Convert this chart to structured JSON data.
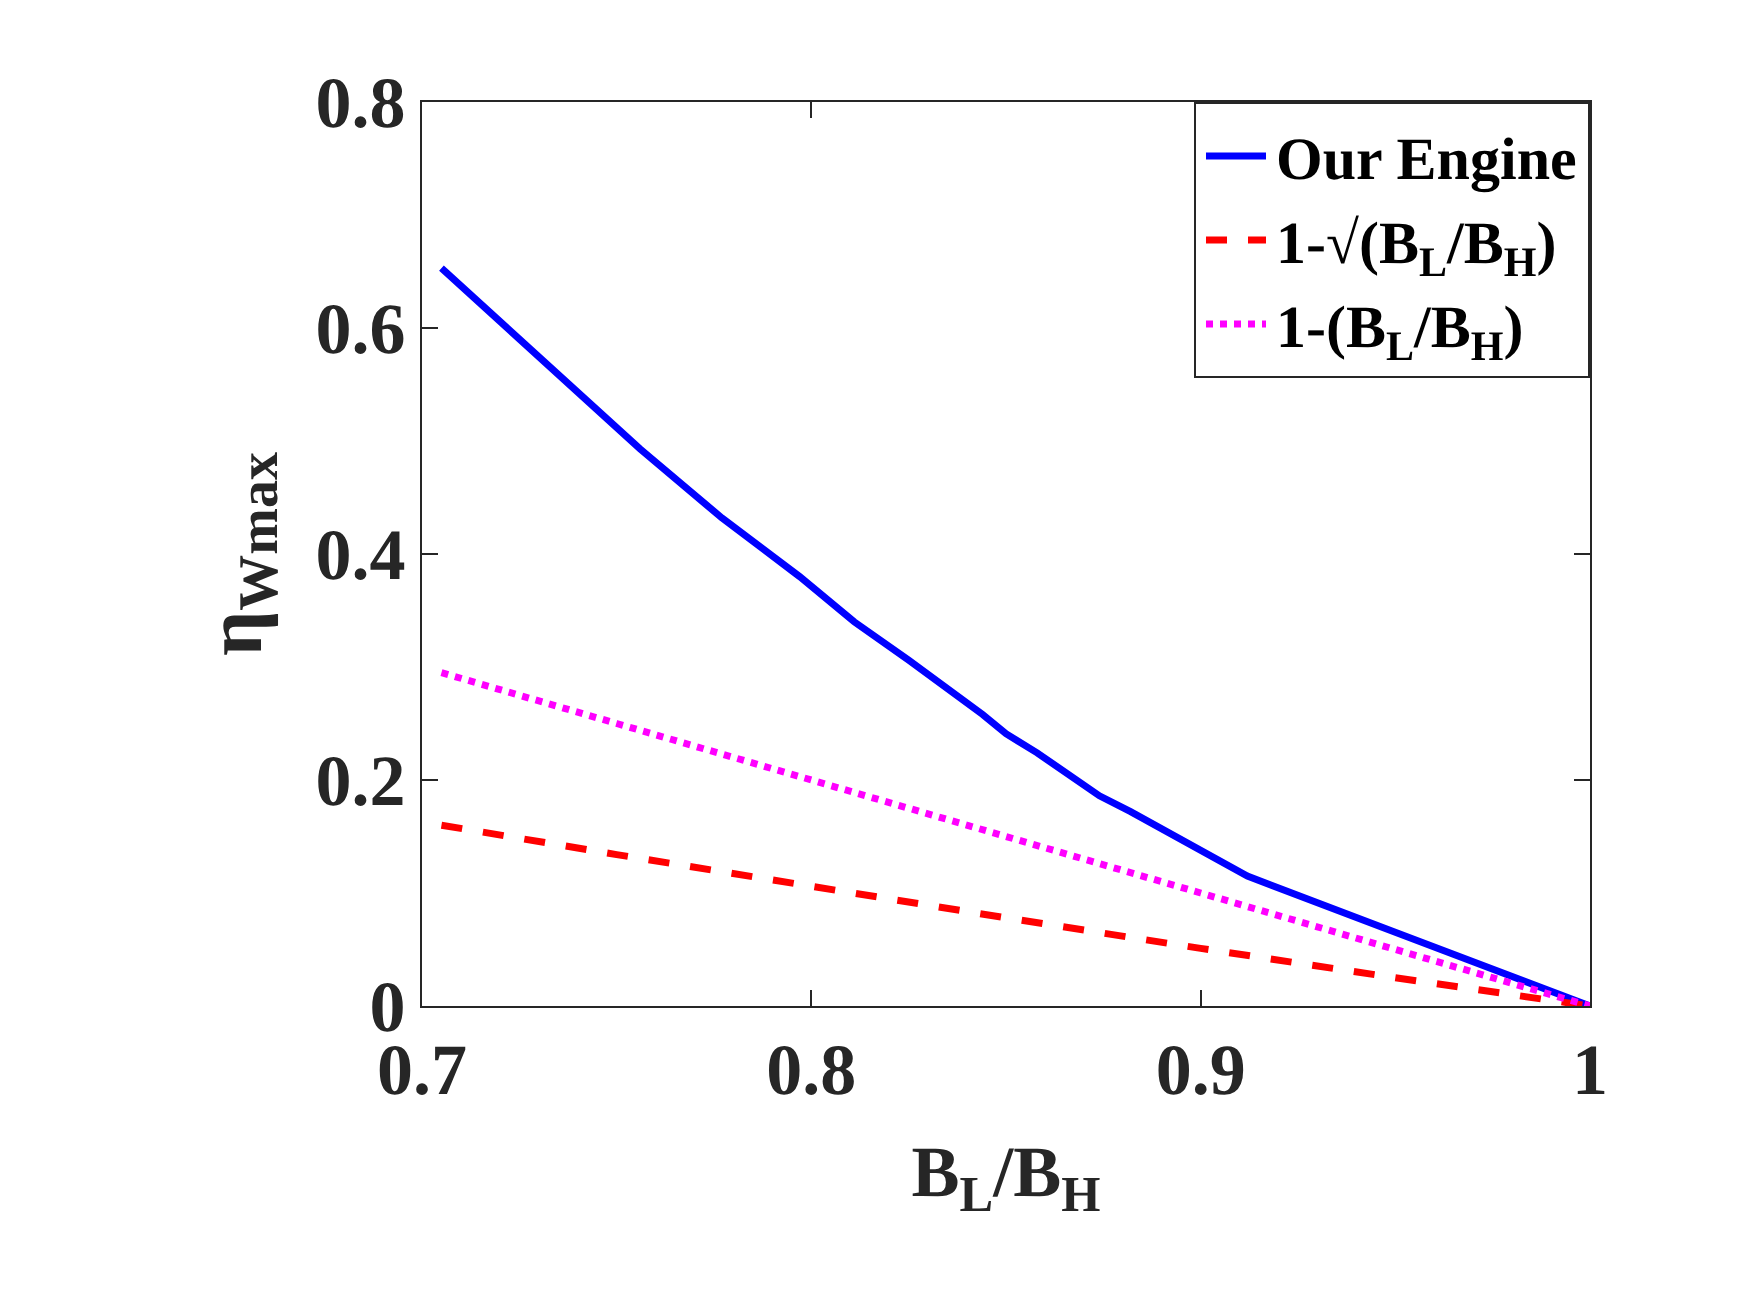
{
  "chart_data": {
    "type": "line",
    "xlabel": "B$_{L}$/B$_{H}$",
    "ylabel": "η$_{W}$$_{max}$",
    "xlim": [
      0.7,
      1
    ],
    "xticks": [
      0.7,
      0.8,
      0.9,
      1
    ],
    "ylim": [
      0,
      0.8
    ],
    "yticks": [
      0,
      0.2,
      0.4,
      0.6,
      0.8
    ],
    "grid": false,
    "legend": "top right",
    "marker": "none",
    "series": [
      {
        "name": "Our Engine",
        "color": "#0000ff",
        "line_style": "solid",
        "x": [
          0.705,
          0.756,
          0.777,
          0.797,
          0.811,
          0.825,
          0.844,
          0.85,
          0.858,
          0.874,
          0.882,
          0.912,
          0.951,
          1
        ],
        "values": [
          0.653,
          0.493,
          0.432,
          0.38,
          0.34,
          0.306,
          0.258,
          0.241,
          0.224,
          0.186,
          0.172,
          0.115,
          0.064,
          0
        ]
      },
      {
        "name": "1-√(B$_{L}$/B$_{H}$)",
        "color": "#ff0000",
        "line_style": "dashed",
        "x": [
          0.705,
          0.75,
          0.8,
          0.85,
          0.9,
          0.95,
          1
        ],
        "values": [
          0.16,
          0.134,
          0.106,
          0.078,
          0.051,
          0.025,
          0
        ]
      },
      {
        "name": "1-(B$_{L}$/B$_{H}$)",
        "color": "#ff00ff",
        "line_style": "dotted",
        "x": [
          0.705,
          0.75,
          0.8,
          0.85,
          0.9,
          0.95,
          1
        ],
        "values": [
          0.295,
          0.25,
          0.2,
          0.15,
          0.1,
          0.05,
          0
        ]
      }
    ]
  }
}
